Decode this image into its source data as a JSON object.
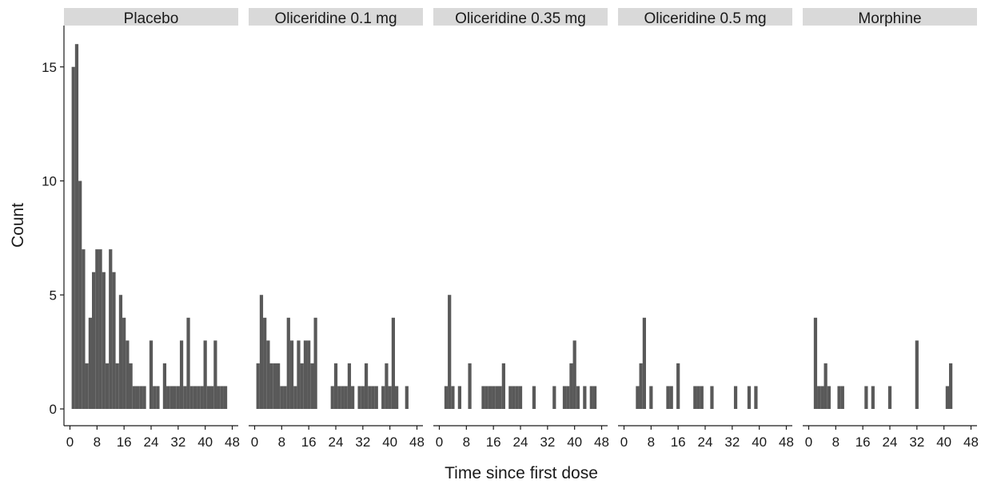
{
  "chart_data": {
    "type": "bar",
    "xlabel": "Time since first dose",
    "ylabel": "Count",
    "ylim": [
      0,
      16
    ],
    "xlim": [
      0,
      48
    ],
    "x_ticks": [
      "0",
      "8",
      "16",
      "24",
      "32",
      "40",
      "48"
    ],
    "y_ticks": [
      "0",
      "5",
      "10",
      "15"
    ],
    "grid": false,
    "bar_color": "#595959",
    "strip_color": "#d9d9d9",
    "bin_width": 1,
    "panels": [
      {
        "name": "Placebo",
        "x": [
          1,
          2,
          3,
          4,
          5,
          6,
          7,
          8,
          9,
          10,
          11,
          12,
          13,
          14,
          15,
          16,
          17,
          18,
          19,
          20,
          21,
          22,
          23,
          24,
          25,
          26,
          27,
          28,
          29,
          30,
          31,
          32,
          33,
          34,
          35,
          36,
          37,
          38,
          39,
          40,
          41,
          42,
          43,
          44,
          45,
          46
        ],
        "y": [
          15,
          16,
          10,
          7,
          2,
          4,
          6,
          7,
          7,
          6,
          2,
          7,
          6,
          2,
          5,
          4,
          3,
          2,
          1,
          1,
          1,
          1,
          0,
          3,
          1,
          1,
          0,
          2,
          1,
          1,
          1,
          1,
          3,
          1,
          4,
          1,
          1,
          1,
          1,
          3,
          1,
          1,
          3,
          1,
          1,
          1
        ]
      },
      {
        "name": "Oliceridine 0.1 mg",
        "x": [
          1,
          2,
          3,
          4,
          5,
          6,
          7,
          8,
          9,
          10,
          11,
          12,
          13,
          14,
          15,
          16,
          17,
          18,
          19,
          20,
          21,
          22,
          23,
          24,
          25,
          26,
          27,
          28,
          29,
          30,
          31,
          32,
          33,
          34,
          35,
          36,
          37,
          38,
          39,
          40,
          41,
          42,
          43,
          44,
          45,
          46
        ],
        "y": [
          2,
          5,
          4,
          3,
          2,
          2,
          2,
          1,
          1,
          4,
          3,
          1,
          3,
          2,
          3,
          3,
          2,
          4,
          0,
          0,
          0,
          0,
          1,
          2,
          1,
          1,
          1,
          2,
          1,
          0,
          1,
          1,
          2,
          1,
          1,
          1,
          0,
          1,
          2,
          1,
          4,
          1,
          0,
          0,
          1,
          0
        ]
      },
      {
        "name": "Oliceridine 0.35 mg",
        "x": [
          1,
          2,
          3,
          4,
          5,
          6,
          7,
          8,
          9,
          10,
          11,
          12,
          13,
          14,
          15,
          16,
          17,
          18,
          19,
          20,
          21,
          22,
          23,
          24,
          25,
          26,
          27,
          28,
          29,
          30,
          31,
          32,
          33,
          34,
          35,
          36,
          37,
          38,
          39,
          40,
          41,
          42,
          43,
          44,
          45,
          46
        ],
        "y": [
          0,
          1,
          5,
          1,
          0,
          1,
          0,
          0,
          2,
          0,
          0,
          0,
          1,
          1,
          1,
          1,
          1,
          1,
          2,
          0,
          1,
          1,
          1,
          1,
          0,
          0,
          0,
          1,
          0,
          0,
          0,
          0,
          0,
          1,
          0,
          0,
          1,
          1,
          2,
          3,
          1,
          0,
          1,
          0,
          1,
          1
        ]
      },
      {
        "name": "Oliceridine 0.5 mg",
        "x": [
          1,
          2,
          3,
          4,
          5,
          6,
          7,
          8,
          9,
          10,
          11,
          12,
          13,
          14,
          15,
          16,
          17,
          18,
          19,
          20,
          21,
          22,
          23,
          24,
          25,
          26,
          27,
          28,
          29,
          30,
          31,
          32,
          33,
          34,
          35,
          36,
          37,
          38,
          39,
          40,
          41,
          42,
          43,
          44,
          45,
          46
        ],
        "y": [
          0,
          0,
          0,
          1,
          2,
          4,
          0,
          1,
          0,
          0,
          0,
          0,
          1,
          1,
          0,
          2,
          0,
          0,
          0,
          0,
          1,
          1,
          1,
          0,
          0,
          1,
          0,
          0,
          0,
          0,
          0,
          0,
          1,
          0,
          0,
          0,
          1,
          0,
          1,
          0,
          0,
          0,
          0,
          0,
          0,
          0
        ]
      },
      {
        "name": "Morphine",
        "x": [
          1,
          2,
          3,
          4,
          5,
          6,
          7,
          8,
          9,
          10,
          11,
          12,
          13,
          14,
          15,
          16,
          17,
          18,
          19,
          20,
          21,
          22,
          23,
          24,
          25,
          26,
          27,
          28,
          29,
          30,
          31,
          32,
          33,
          34,
          35,
          36,
          37,
          38,
          39,
          40,
          41,
          42,
          43,
          44,
          45,
          46
        ],
        "y": [
          0,
          4,
          1,
          1,
          2,
          1,
          0,
          0,
          1,
          1,
          0,
          0,
          0,
          0,
          0,
          0,
          1,
          0,
          1,
          0,
          0,
          0,
          0,
          1,
          0,
          0,
          0,
          0,
          0,
          0,
          0,
          3,
          0,
          0,
          0,
          0,
          0,
          0,
          0,
          0,
          1,
          2,
          0,
          0,
          0,
          0
        ]
      }
    ]
  }
}
